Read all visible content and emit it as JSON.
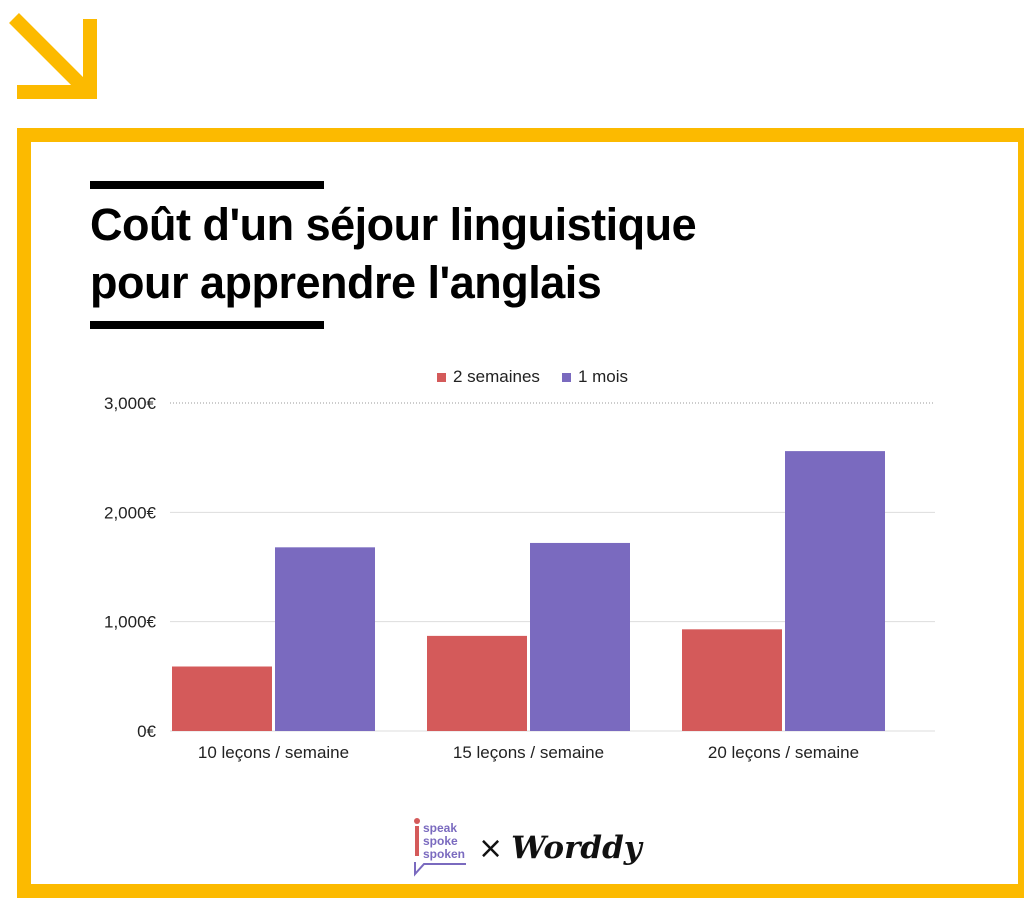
{
  "title_lines": [
    "Coût d'un séjour linguistique",
    "pour apprendre l'anglais"
  ],
  "colors": {
    "accent": "#fcba00",
    "series_1": "#d45a5a",
    "series_2": "#7a6abf"
  },
  "chart_data": {
    "type": "bar",
    "title": "Coût d'un séjour linguistique pour apprendre l'anglais",
    "xlabel": "",
    "ylabel": "",
    "categories": [
      "10 leçons / semaine",
      "15 leçons / semaine",
      "20 leçons / semaine"
    ],
    "series": [
      {
        "name": "2 semaines",
        "values": [
          590,
          870,
          930
        ]
      },
      {
        "name": "1 mois",
        "values": [
          1680,
          1720,
          2560
        ]
      }
    ],
    "ylim": [
      0,
      3000
    ],
    "yticks": [
      0,
      1000,
      2000,
      3000
    ],
    "ytick_labels": [
      "0€",
      "1,000€",
      "2,000€",
      "3,000€"
    ],
    "grid": true,
    "legend_position": "top-center"
  },
  "brand": {
    "logo_lines": [
      "speak",
      "spoke",
      "spoken"
    ],
    "separator": "×",
    "partner": "Worddy"
  }
}
